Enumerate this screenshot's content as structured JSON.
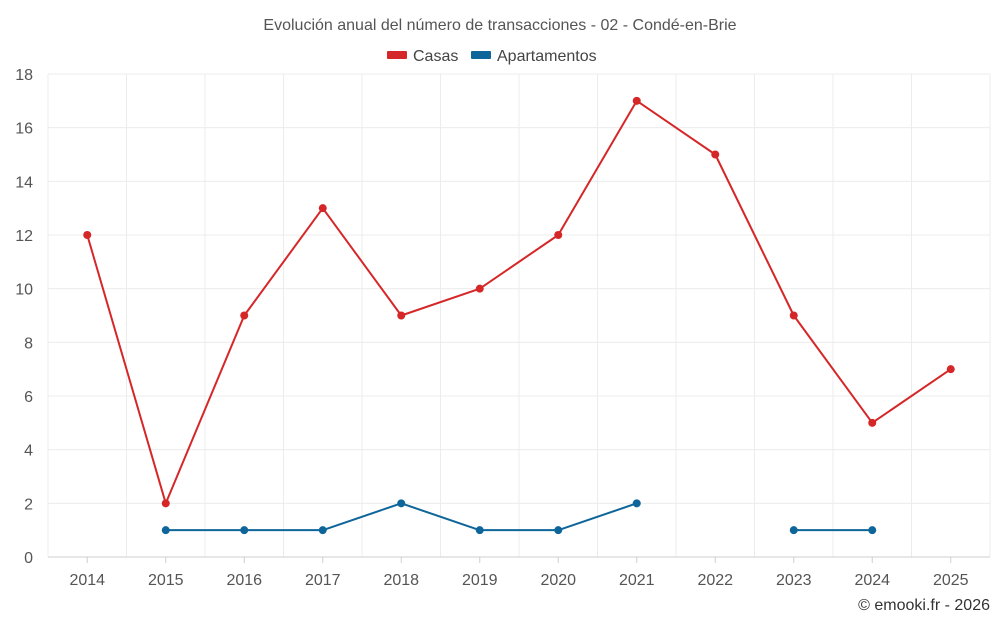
{
  "chart_data": {
    "type": "line",
    "title": "Evolución anual del número de transacciones - 02 - Condé-en-Brie",
    "xlabel": "",
    "ylabel": "",
    "categories": [
      "2014",
      "2015",
      "2016",
      "2017",
      "2018",
      "2019",
      "2020",
      "2021",
      "2022",
      "2023",
      "2024",
      "2025"
    ],
    "ylim": [
      0,
      18
    ],
    "yticks": [
      0,
      2,
      4,
      6,
      8,
      10,
      12,
      14,
      16,
      18
    ],
    "grid": true,
    "legend_position": "top-center",
    "series": [
      {
        "name": "Casas",
        "color": "#d62728",
        "values": [
          12,
          2,
          9,
          13,
          9,
          10,
          12,
          17,
          15,
          9,
          5,
          7
        ]
      },
      {
        "name": "Apartamentos",
        "color": "#0e6599",
        "values": [
          null,
          1,
          1,
          1,
          2,
          1,
          1,
          2,
          null,
          1,
          1,
          null
        ]
      }
    ]
  },
  "credit": "© emooki.fr - 2026"
}
